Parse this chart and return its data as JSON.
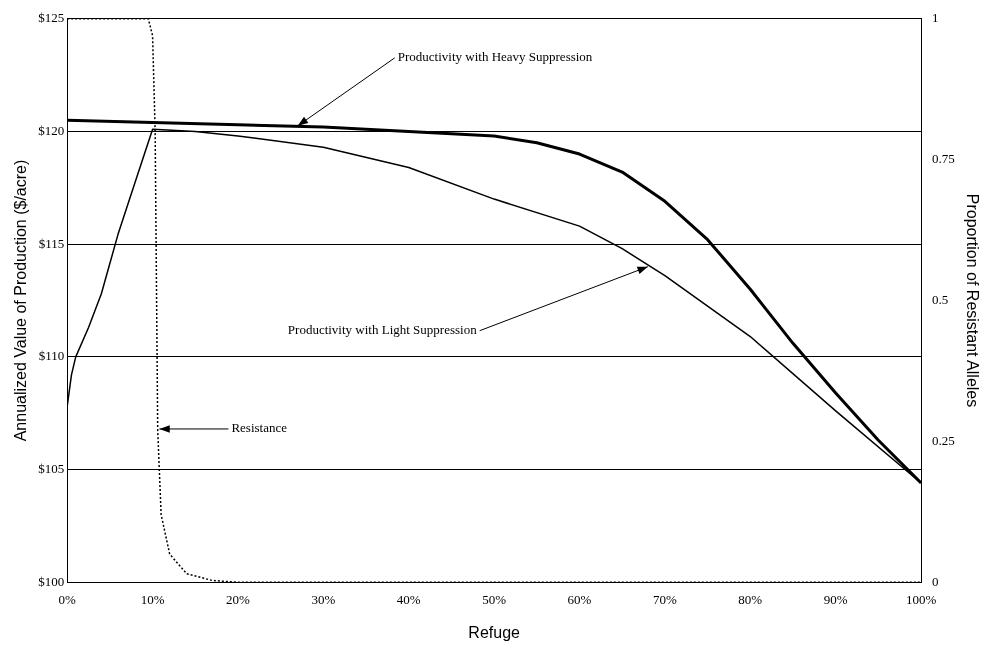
{
  "chart_data": {
    "type": "line",
    "xlabel": "Refuge",
    "ylabel": "Annualized Value of Production ($/acre)",
    "y2label": "Proportion of Resistant Alleles",
    "series": [
      {
        "color": "#000000",
        "x": [
          0,
          10,
          20,
          30,
          40,
          50,
          55,
          60,
          65,
          70,
          75,
          80,
          85,
          90,
          95,
          100
        ],
        "values": [
          120.5,
          120.4,
          120.3,
          120.2,
          120.0,
          119.8,
          119.5,
          119.0,
          118.2,
          116.9,
          115.2,
          113.0,
          110.6,
          108.4,
          106.3,
          104.4
        ]
      },
      {
        "color": "#000000",
        "x": [
          0,
          0.5,
          1,
          2.5,
          4,
          6,
          8,
          10,
          15,
          20,
          30,
          40,
          50,
          60,
          65,
          70,
          80,
          90,
          100
        ],
        "values": [
          107.8,
          109.2,
          110.0,
          111.3,
          112.8,
          115.5,
          117.8,
          120.1,
          120.0,
          119.8,
          119.3,
          118.4,
          117.0,
          115.8,
          114.8,
          113.6,
          110.9,
          107.6,
          104.4
        ]
      },
      {
        "color": "#000000",
        "axis": "y2",
        "line_style": "dotted",
        "x": [
          0,
          9.5,
          10,
          10.3,
          10.6,
          11,
          12,
          14,
          17,
          20,
          100
        ],
        "values": [
          1,
          1,
          0.97,
          0.8,
          0.27,
          0.12,
          0.05,
          0.015,
          0.003,
          0,
          0
        ]
      }
    ],
    "xlim": [
      0,
      100
    ],
    "xticks": [
      {
        "value": 0,
        "label": "0%"
      },
      {
        "value": 10,
        "label": "10%"
      },
      {
        "value": 20,
        "label": "20%"
      },
      {
        "value": 30,
        "label": "30%"
      },
      {
        "value": 40,
        "label": "40%"
      },
      {
        "value": 50,
        "label": "50%"
      },
      {
        "value": 60,
        "label": "60%"
      },
      {
        "value": 70,
        "label": "70%"
      },
      {
        "value": 80,
        "label": "80%"
      },
      {
        "value": 90,
        "label": "90%"
      },
      {
        "value": 100,
        "label": "100%"
      }
    ],
    "ylim": [
      100,
      125
    ],
    "yticks": [
      {
        "value": 100,
        "label": "$100"
      },
      {
        "value": 105,
        "label": "$105"
      },
      {
        "value": 110,
        "label": "$110"
      },
      {
        "value": 115,
        "label": "$115"
      },
      {
        "value": 120,
        "label": "$120"
      },
      {
        "value": 125,
        "label": "$125"
      }
    ],
    "y2lim": [
      0,
      1
    ],
    "y2ticks": [
      0,
      0.25,
      0.5,
      0.75,
      1
    ],
    "grid": "y",
    "legend": false,
    "annotations": [
      {
        "text": "Productivity with Heavy Suppression",
        "x": 27,
        "y": 120.25
      },
      {
        "text": "Productivity with Light Suppression",
        "x": 68,
        "y": 114.0
      },
      {
        "text": "Resistance",
        "x": 10.8,
        "y": 106.8
      }
    ]
  }
}
